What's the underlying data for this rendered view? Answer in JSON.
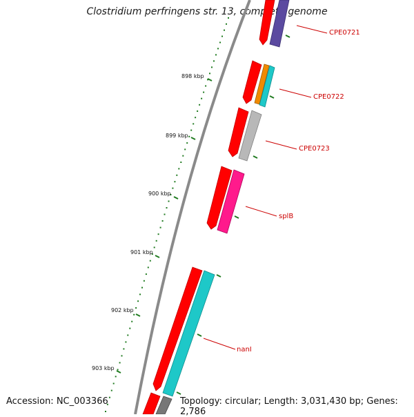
{
  "title": "Clostridium perfringens str. 13, complete genome",
  "footer": {
    "accession": "Accession: NC_003366",
    "topology": "Topology: circular; Length: 3,031,430 bp; Genes: 2,786"
  },
  "colors": {
    "backbone": "#8a8a8a",
    "tick": "#1f7a1f",
    "label": "#cc0000",
    "forward_gene": "#ff0000"
  },
  "scale": [
    {
      "label": "898 kbp"
    },
    {
      "label": "899 kbp"
    },
    {
      "label": "900 kbp"
    },
    {
      "label": "901 kbp"
    },
    {
      "label": "902 kbp"
    },
    {
      "label": "903 kbp"
    }
  ],
  "genes": [
    {
      "name": "CPE0721",
      "color": "#5b4aa0"
    },
    {
      "name": "CPE0722",
      "color": "#f08a00"
    },
    {
      "name": "CPE0723",
      "color": "#b8b8b8"
    },
    {
      "name": "splB",
      "color": "#ff1a8c"
    },
    {
      "name": "nanI",
      "color": "#1ec8c8"
    }
  ]
}
